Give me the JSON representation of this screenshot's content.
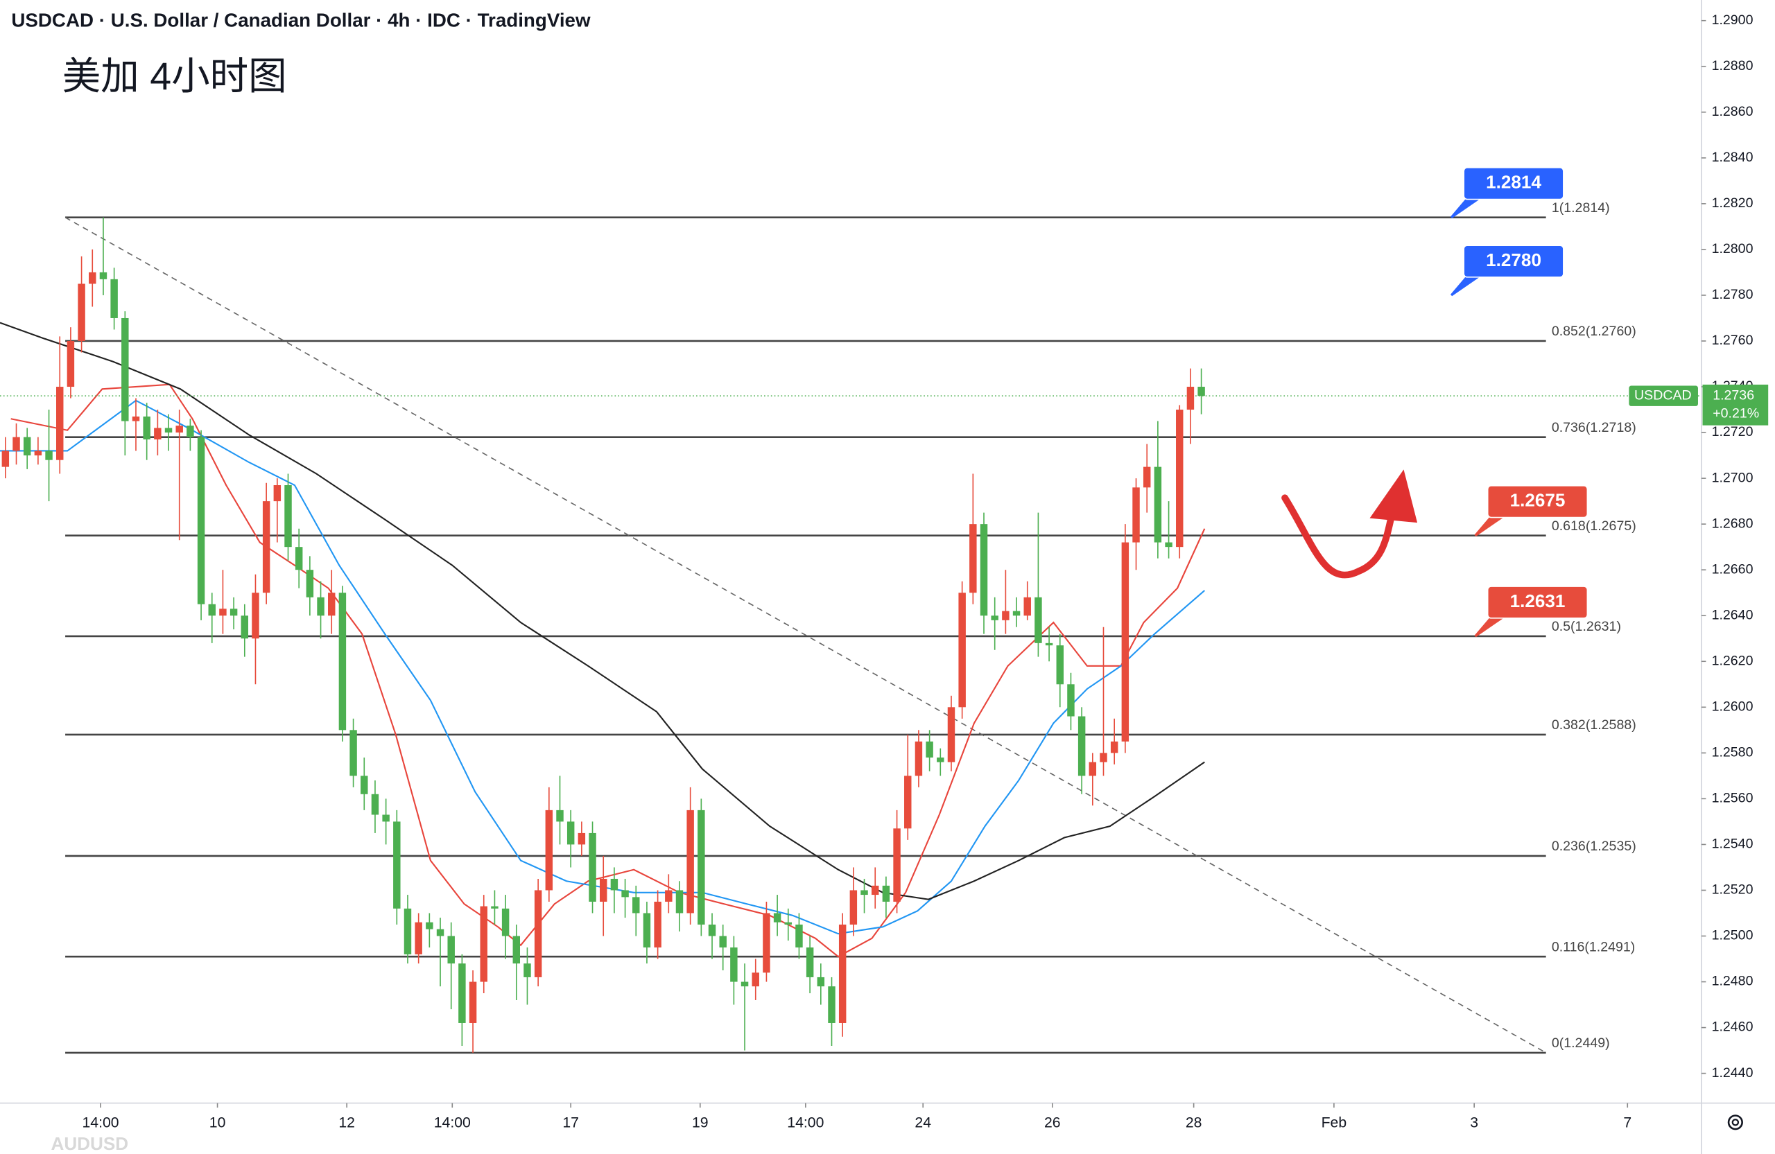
{
  "chart_data": {
    "type": "candlestick",
    "title": "USDCAD · U.S. Dollar / Canadian Dollar · 4h · IDC · TradingView",
    "subtitle": "美加 4小时图",
    "footer_text": "AUDUSD",
    "up_color": "#e74c3c",
    "down_color": "#4caf50",
    "xlim": [
      -0.5,
      156
    ],
    "ylim": [
      1.2427,
      1.2909
    ],
    "xticks": [
      {
        "value": 8.75,
        "label": "14:00"
      },
      {
        "value": 19.5,
        "label": "10"
      },
      {
        "value": 31.4,
        "label": "12"
      },
      {
        "value": 41.1,
        "label": "14:00"
      },
      {
        "value": 52,
        "label": "17"
      },
      {
        "value": 63.9,
        "label": "19"
      },
      {
        "value": 73.6,
        "label": "14:00"
      },
      {
        "value": 84.4,
        "label": "24"
      },
      {
        "value": 96.3,
        "label": "26"
      },
      {
        "value": 109.3,
        "label": "28"
      },
      {
        "value": 122.2,
        "label": "Feb"
      },
      {
        "value": 135.1,
        "label": "3"
      },
      {
        "value": 149.2,
        "label": "7"
      }
    ],
    "yticks": [
      {
        "value": 1.29,
        "label": "1.2900"
      },
      {
        "value": 1.288,
        "label": "1.2880"
      },
      {
        "value": 1.286,
        "label": "1.2860"
      },
      {
        "value": 1.284,
        "label": "1.2840"
      },
      {
        "value": 1.282,
        "label": "1.2820"
      },
      {
        "value": 1.28,
        "label": "1.2800"
      },
      {
        "value": 1.278,
        "label": "1.2780"
      },
      {
        "value": 1.276,
        "label": "1.2760"
      },
      {
        "value": 1.274,
        "label": "1.2740"
      },
      {
        "value": 1.272,
        "label": "1.2720"
      },
      {
        "value": 1.27,
        "label": "1.2700"
      },
      {
        "value": 1.268,
        "label": "1.2680"
      },
      {
        "value": 1.266,
        "label": "1.2660"
      },
      {
        "value": 1.264,
        "label": "1.2640"
      },
      {
        "value": 1.262,
        "label": "1.2620"
      },
      {
        "value": 1.26,
        "label": "1.2600"
      },
      {
        "value": 1.258,
        "label": "1.2580"
      },
      {
        "value": 1.256,
        "label": "1.2560"
      },
      {
        "value": 1.254,
        "label": "1.2540"
      },
      {
        "value": 1.252,
        "label": "1.2520"
      },
      {
        "value": 1.25,
        "label": "1.2500"
      },
      {
        "value": 1.248,
        "label": "1.2480"
      },
      {
        "value": 1.246,
        "label": "1.2460"
      },
      {
        "value": 1.244,
        "label": "1.2440"
      }
    ],
    "open": [
      1.2705,
      1.2712,
      1.2718,
      1.271,
      1.2712,
      1.2708,
      1.274,
      1.276,
      1.2785,
      1.279,
      1.2787,
      1.277,
      1.2725,
      1.2727,
      1.2717,
      1.2722,
      1.272,
      1.2723,
      1.2718,
      1.2645,
      1.264,
      1.2643,
      1.264,
      1.263,
      1.265,
      1.269,
      1.2697,
      1.267,
      1.266,
      1.2648,
      1.264,
      1.265,
      1.259,
      1.257,
      1.2562,
      1.2553,
      1.255,
      1.2512,
      1.2492,
      1.2506,
      1.2503,
      1.25,
      1.2488,
      1.2462,
      1.248,
      1.2513,
      1.2512,
      1.25,
      1.2488,
      1.2482,
      1.252,
      1.2555,
      1.255,
      1.254,
      1.2545,
      1.2515,
      1.2525,
      1.252,
      1.2517,
      1.251,
      1.2495,
      1.2515,
      1.252,
      1.251,
      1.2555,
      1.2505,
      1.25,
      1.2495,
      1.248,
      1.2478,
      1.2484,
      1.251,
      1.2506,
      1.2505,
      1.2495,
      1.2482,
      1.2478,
      1.2462,
      1.2505,
      1.252,
      1.2518,
      1.2522,
      1.2515,
      1.2547,
      1.257,
      1.2585,
      1.2578,
      1.2576,
      1.26,
      1.265,
      1.268,
      1.264,
      1.2638,
      1.2642,
      1.264,
      1.2648,
      1.2628,
      1.2627,
      1.261,
      1.2596,
      1.257,
      1.2576,
      1.258,
      1.2585,
      1.2672,
      1.2696,
      1.2705,
      1.2672,
      1.267,
      1.273,
      1.274
    ],
    "high": [
      1.2718,
      1.2724,
      1.2722,
      1.2718,
      1.273,
      1.2762,
      1.2766,
      1.2797,
      1.28,
      1.2814,
      1.2792,
      1.2773,
      1.2735,
      1.2733,
      1.273,
      1.2728,
      1.273,
      1.2726,
      1.2721,
      1.265,
      1.266,
      1.2648,
      1.2645,
      1.2658,
      1.2698,
      1.27,
      1.2702,
      1.2678,
      1.2666,
      1.2655,
      1.266,
      1.2653,
      1.2595,
      1.2578,
      1.2568,
      1.256,
      1.2555,
      1.2518,
      1.251,
      1.251,
      1.2508,
      1.2506,
      1.2492,
      1.2485,
      1.2518,
      1.252,
      1.2518,
      1.2505,
      1.2495,
      1.2525,
      1.2565,
      1.257,
      1.2555,
      1.255,
      1.255,
      1.2535,
      1.253,
      1.2525,
      1.2522,
      1.2515,
      1.252,
      1.2527,
      1.2524,
      1.2565,
      1.256,
      1.251,
      1.2505,
      1.25,
      1.2488,
      1.249,
      1.2515,
      1.2518,
      1.2512,
      1.251,
      1.25,
      1.2488,
      1.2482,
      1.251,
      1.253,
      1.2525,
      1.253,
      1.2526,
      1.2555,
      1.2588,
      1.259,
      1.259,
      1.2582,
      1.2605,
      1.2655,
      1.2702,
      1.2685,
      1.2648,
      1.266,
      1.2648,
      1.2655,
      1.2685,
      1.2635,
      1.2632,
      1.2615,
      1.26,
      1.258,
      1.2635,
      1.2595,
      1.268,
      1.27,
      1.2715,
      1.2725,
      1.269,
      1.2732,
      1.2748,
      1.2748
    ],
    "low": [
      1.27,
      1.2706,
      1.2704,
      1.2706,
      1.269,
      1.2702,
      1.2735,
      1.2755,
      1.2775,
      1.278,
      1.2765,
      1.271,
      1.2712,
      1.2708,
      1.271,
      1.2712,
      1.2673,
      1.2712,
      1.2638,
      1.2628,
      1.2632,
      1.2634,
      1.2622,
      1.261,
      1.2645,
      1.2672,
      1.2664,
      1.2652,
      1.264,
      1.263,
      1.2632,
      1.2585,
      1.2565,
      1.2555,
      1.2545,
      1.254,
      1.2505,
      1.2488,
      1.2488,
      1.2495,
      1.2478,
      1.2468,
      1.2452,
      1.2449,
      1.2475,
      1.2505,
      1.249,
      1.2472,
      1.247,
      1.2478,
      1.2515,
      1.254,
      1.253,
      1.2535,
      1.251,
      1.25,
      1.251,
      1.2508,
      1.25,
      1.2488,
      1.249,
      1.251,
      1.2502,
      1.2505,
      1.25,
      1.249,
      1.2485,
      1.247,
      1.245,
      1.2472,
      1.248,
      1.25,
      1.2498,
      1.249,
      1.2475,
      1.247,
      1.2452,
      1.2456,
      1.25,
      1.251,
      1.2512,
      1.2508,
      1.251,
      1.2542,
      1.2565,
      1.2572,
      1.257,
      1.2572,
      1.2595,
      1.2645,
      1.2632,
      1.2625,
      1.2632,
      1.2635,
      1.2638,
      1.2622,
      1.262,
      1.26,
      1.259,
      1.2562,
      1.2557,
      1.257,
      1.2575,
      1.258,
      1.266,
      1.2685,
      1.2665,
      1.2665,
      1.2665,
      1.2715,
      1.2728
    ],
    "close": [
      1.2712,
      1.2718,
      1.271,
      1.2712,
      1.2708,
      1.274,
      1.276,
      1.2785,
      1.279,
      1.2787,
      1.277,
      1.2725,
      1.2727,
      1.2717,
      1.2722,
      1.272,
      1.2723,
      1.2718,
      1.2645,
      1.264,
      1.2643,
      1.264,
      1.263,
      1.265,
      1.269,
      1.2697,
      1.267,
      1.266,
      1.2648,
      1.264,
      1.265,
      1.259,
      1.257,
      1.2562,
      1.2553,
      1.255,
      1.2512,
      1.2492,
      1.2506,
      1.2503,
      1.25,
      1.2488,
      1.2462,
      1.248,
      1.2513,
      1.2512,
      1.25,
      1.2488,
      1.2482,
      1.252,
      1.2555,
      1.255,
      1.254,
      1.2545,
      1.2515,
      1.2525,
      1.252,
      1.2517,
      1.251,
      1.2495,
      1.2515,
      1.252,
      1.251,
      1.2555,
      1.2505,
      1.25,
      1.2495,
      1.248,
      1.2478,
      1.2484,
      1.251,
      1.2506,
      1.2505,
      1.2495,
      1.2482,
      1.2478,
      1.2462,
      1.2505,
      1.252,
      1.2518,
      1.2522,
      1.2515,
      1.2547,
      1.257,
      1.2585,
      1.2578,
      1.2576,
      1.26,
      1.265,
      1.268,
      1.264,
      1.2638,
      1.2642,
      1.264,
      1.2648,
      1.2628,
      1.2627,
      1.261,
      1.2596,
      1.257,
      1.2576,
      1.258,
      1.2585,
      1.2672,
      1.2696,
      1.2705,
      1.2672,
      1.267,
      1.273,
      1.274,
      1.2736
    ],
    "series": [
      {
        "color": "#e8453c",
        "x": [
          0.5,
          5.7,
          8.9,
          15.1,
          17.2,
          20.3,
          23.4,
          26.6,
          29.7,
          32.8,
          35.9,
          39.1,
          42.2,
          45.3,
          47.4,
          50.5,
          53.6,
          57.8,
          62,
          66.1,
          70.3,
          74.5,
          76.6,
          79.7,
          82.8,
          85.9,
          89.1,
          92.2,
          96.4,
          99.5,
          102.6,
          104.7,
          107.8,
          110.3
        ],
        "values": [
          1.2726,
          1.2721,
          1.2739,
          1.2741,
          1.2726,
          1.2697,
          1.2672,
          1.2662,
          1.2652,
          1.2632,
          1.2588,
          1.2533,
          1.2514,
          1.2504,
          1.2496,
          1.2514,
          1.2524,
          1.2529,
          1.2519,
          1.2514,
          1.2509,
          1.2499,
          1.2491,
          1.2499,
          1.2519,
          1.2553,
          1.2593,
          1.2618,
          1.2637,
          1.2618,
          1.2618,
          1.2637,
          1.2652,
          1.2678
        ]
      },
      {
        "color": "#2196f3",
        "x": [
          -0.5,
          5.7,
          12,
          17.2,
          22.4,
          26.6,
          30.7,
          34.9,
          39.1,
          43.2,
          47.4,
          51.6,
          57.8,
          64.1,
          68.2,
          72.4,
          76.6,
          80.7,
          83.9,
          87,
          90.1,
          93.2,
          96.4,
          99.5,
          102.6,
          105.7,
          110.3
        ],
        "values": [
          1.2712,
          1.2712,
          1.2734,
          1.2721,
          1.2707,
          1.2697,
          1.2662,
          1.2632,
          1.2603,
          1.2563,
          1.2533,
          1.2524,
          1.2519,
          1.2519,
          1.2514,
          1.2509,
          1.2501,
          1.2504,
          1.2511,
          1.2524,
          1.2548,
          1.2568,
          1.2593,
          1.2608,
          1.2618,
          1.2632,
          1.2651
        ]
      },
      {
        "color": "#222222",
        "x": [
          -0.5,
          3.6,
          9.9,
          16.1,
          22.4,
          28.6,
          34.9,
          41.1,
          47.4,
          53.6,
          59.9,
          64.1,
          70.3,
          76.6,
          80.7,
          84.9,
          89.1,
          93.2,
          97.4,
          101.6,
          105.7,
          110.3
        ],
        "values": [
          1.2768,
          1.2761,
          1.2751,
          1.2739,
          1.2719,
          1.2702,
          1.2682,
          1.2662,
          1.2637,
          1.2618,
          1.2598,
          1.2573,
          1.2548,
          1.2529,
          1.2519,
          1.2516,
          1.2524,
          1.2533,
          1.2543,
          1.2548,
          1.2561,
          1.2576
        ]
      }
    ],
    "trendline": {
      "x": [
        5.5,
        141.7
      ],
      "values": [
        1.2814,
        1.2449
      ]
    },
    "fibonacci": {
      "x": [
        5.5,
        141.7
      ],
      "levels": [
        {
          "value": 1.2814,
          "label": "1(1.2814)"
        },
        {
          "value": 1.276,
          "label": "0.852(1.2760)"
        },
        {
          "value": 1.2718,
          "label": "0.736(1.2718)"
        },
        {
          "value": 1.2675,
          "label": "0.618(1.2675)"
        },
        {
          "value": 1.2631,
          "label": "0.5(1.2631)"
        },
        {
          "value": 1.2588,
          "label": "0.382(1.2588)"
        },
        {
          "value": 1.2535,
          "label": "0.236(1.2535)"
        },
        {
          "value": 1.2491,
          "label": "0.116(1.2491)"
        },
        {
          "value": 1.2449,
          "label": "0(1.2449)"
        }
      ]
    },
    "callouts": [
      {
        "value": 1.2814,
        "x": 133,
        "color": "#2962ff"
      },
      {
        "value": 1.278,
        "label": "1.2780",
        "x": 133,
        "color": "#2962ff"
      },
      {
        "value": 1.2675,
        "x": 135.2,
        "color": "#e74c3c"
      },
      {
        "value": 1.2631,
        "x": 135.2,
        "color": "#e74c3c"
      }
    ],
    "last": {
      "symbol": "USDCAD",
      "value": 1.2736,
      "change": "+0.21%",
      "color": "#4caf50"
    }
  }
}
